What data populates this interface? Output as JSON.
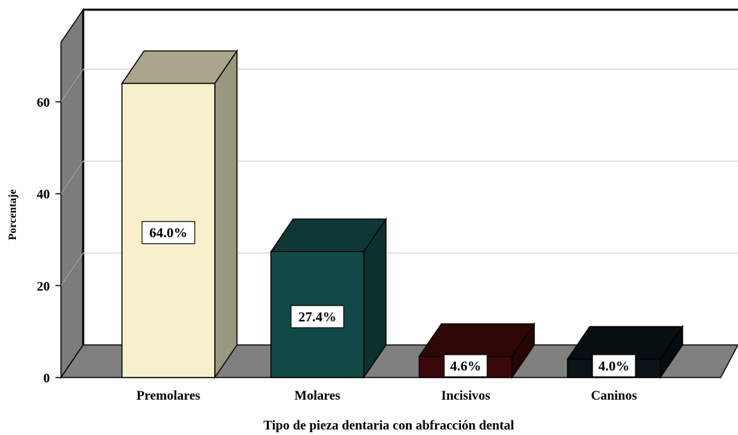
{
  "chart_data": {
    "type": "bar",
    "three_d": true,
    "title": "",
    "xlabel": "Tipo de pieza dentaria con abfracción dental",
    "ylabel": "Porcentaje",
    "categories": [
      "Premolares",
      "Molares",
      "Incisivos",
      "Caninos"
    ],
    "values": [
      64.0,
      27.4,
      4.6,
      4.0
    ],
    "data_labels": [
      "64.0%",
      "27.4%",
      "4.6%",
      "4.0%"
    ],
    "yticks": [
      0,
      20,
      40,
      60
    ],
    "ylim": [
      0,
      80
    ],
    "grid": true,
    "legend": "none",
    "colors": {
      "bars_front": [
        "#f6f0cc",
        "#0f4a46",
        "#3a0808",
        "#0a1418"
      ],
      "bars_side": [
        "#9a977f",
        "#0b302d",
        "#280505",
        "#050b0e"
      ],
      "bars_top": [
        "#a9a68c",
        "#0d3835",
        "#2e0606",
        "#070f12"
      ],
      "back_wall": "#ffffff",
      "side_wall": "#7c7c7c",
      "floor": "#808080",
      "gridline": "#d4d4d4"
    }
  }
}
